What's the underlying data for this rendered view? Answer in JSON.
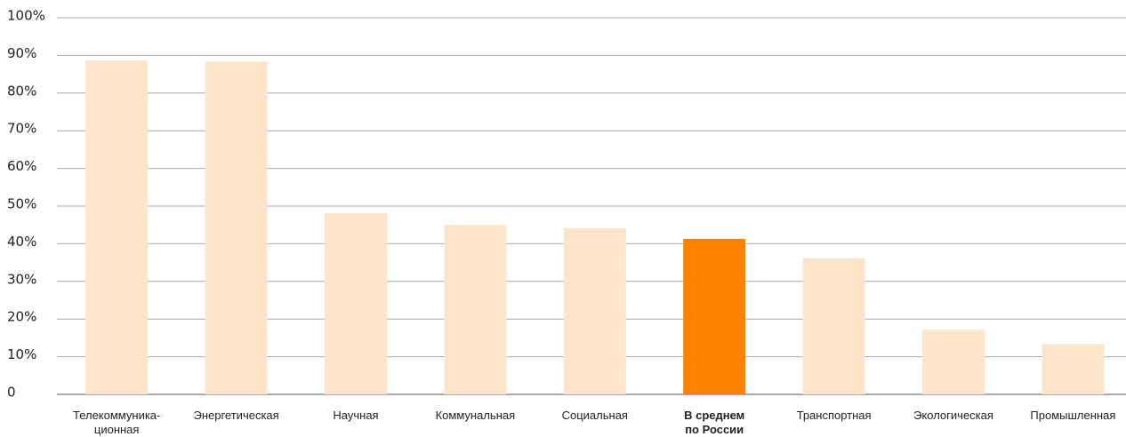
{
  "chart_data": {
    "type": "bar",
    "categories": [
      "Телекоммуника-\nционная",
      "Энергетическая",
      "Научная",
      "Коммунальная",
      "Социальная",
      "В среднем\nпо России",
      "Транспортная",
      "Экологическая",
      "Промышленная"
    ],
    "values": [
      88.7,
      88.4,
      48.1,
      45.0,
      44.1,
      41.3,
      36.1,
      17.2,
      13.4
    ],
    "colors": [
      "#fde5cb",
      "#fde5cb",
      "#fde5cb",
      "#fde5cb",
      "#fde5cb",
      "#ff8200",
      "#fde5cb",
      "#fde5cb",
      "#fde5cb"
    ],
    "highlight": 5,
    "ylim": [
      0,
      100
    ],
    "yticks": [
      0,
      {
        "value": 10,
        "label": "10%"
      },
      {
        "value": 20,
        "label": "20%"
      },
      {
        "value": 30,
        "label": "30%"
      },
      {
        "value": 40,
        "label": "40%"
      },
      {
        "value": 50,
        "label": "50%"
      },
      {
        "value": 60,
        "label": "60%"
      },
      {
        "value": 70,
        "label": "70%"
      },
      {
        "value": 80,
        "label": "80%"
      },
      {
        "value": 90,
        "label": "90%"
      },
      {
        "value": 100,
        "label": "100%"
      }
    ],
    "grid": true
  }
}
